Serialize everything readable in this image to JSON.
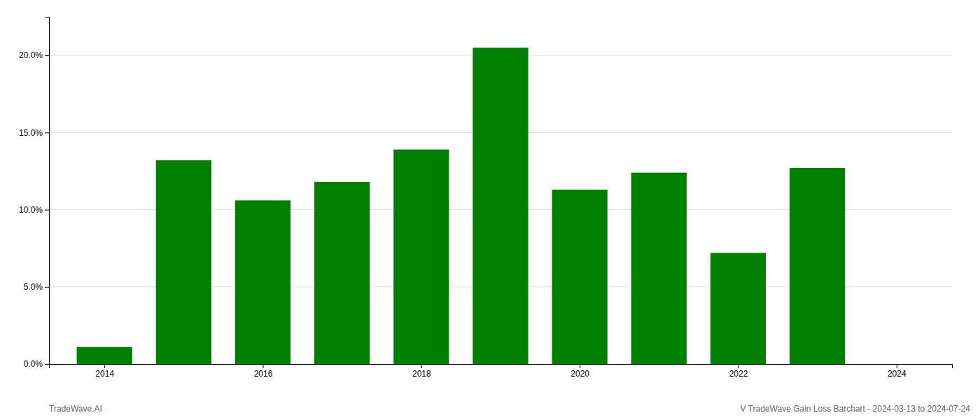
{
  "chart_data": {
    "type": "bar",
    "x": [
      2014,
      2015,
      2016,
      2017,
      2018,
      2019,
      2020,
      2021,
      2022,
      2023
    ],
    "values": [
      0.011,
      0.132,
      0.106,
      0.118,
      0.139,
      0.205,
      0.113,
      0.124,
      0.072,
      0.127
    ],
    "color": "#008000",
    "xlim": [
      2013.3,
      2024.7
    ],
    "xticks": [
      2014,
      2016,
      2018,
      2020,
      2022,
      2024
    ],
    "ylim": [
      0,
      0.225
    ],
    "yticks": [
      {
        "value": 0.0,
        "label": "0.0%"
      },
      {
        "value": 0.05,
        "label": "5.0%"
      },
      {
        "value": 0.1,
        "label": "10.0%"
      },
      {
        "value": 0.15,
        "label": "15.0%"
      },
      {
        "value": 0.2,
        "label": "20.0%"
      }
    ],
    "grid": true,
    "annotations": [
      "TradeWave.AI",
      "V TradeWave Gain Loss Barchart - 2024-03-13 to 2024-07-24"
    ]
  }
}
